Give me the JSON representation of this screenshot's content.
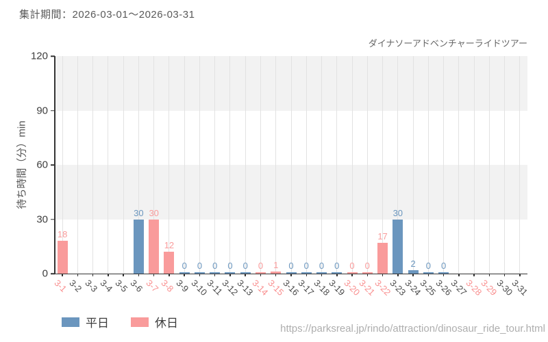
{
  "header": {
    "period_label": "集計期間：2026-03-01～2026-03-31"
  },
  "footer": {
    "url": "https://parksreal.jp/rindo/attraction/dinosaur_ride_tour.html"
  },
  "colors": {
    "weekday": "#6b96be",
    "holiday": "#f99b9b",
    "axis": "#333333",
    "tick_label_dark": "#4a4a4a",
    "tick_label_holiday": "#f98f8f",
    "band_gray": "#f2f2f2",
    "gridline": "#e2e2e2",
    "url_gray": "#aeaeae"
  },
  "chart_data": {
    "type": "bar",
    "title": "ダイナソーアドベンチャーライドツアー",
    "xlabel": "",
    "ylabel": "待ち時間（分）min",
    "ylim": [
      0,
      120
    ],
    "yticks": [
      0,
      30,
      60,
      90,
      120
    ],
    "grid": "alternating horizontal gray bands (30-unit) + vertical category gridlines",
    "legend_position": "bottom-left",
    "legend": [
      {
        "name": "平日",
        "color": "#6b96be"
      },
      {
        "name": "休日",
        "color": "#f99b9b"
      }
    ],
    "days": [
      {
        "label": "3-1",
        "day_type": "holiday",
        "value": 18
      },
      {
        "label": "3-2",
        "day_type": "weekday",
        "value": null
      },
      {
        "label": "3-3",
        "day_type": "weekday",
        "value": null
      },
      {
        "label": "3-4",
        "day_type": "weekday",
        "value": null
      },
      {
        "label": "3-5",
        "day_type": "weekday",
        "value": null
      },
      {
        "label": "3-6",
        "day_type": "weekday",
        "value": 30
      },
      {
        "label": "3-7",
        "day_type": "holiday",
        "value": 30
      },
      {
        "label": "3-8",
        "day_type": "holiday",
        "value": 12
      },
      {
        "label": "3-9",
        "day_type": "weekday",
        "value": 0
      },
      {
        "label": "3-10",
        "day_type": "weekday",
        "value": 0
      },
      {
        "label": "3-11",
        "day_type": "weekday",
        "value": 0
      },
      {
        "label": "3-12",
        "day_type": "weekday",
        "value": 0
      },
      {
        "label": "3-13",
        "day_type": "weekday",
        "value": 0
      },
      {
        "label": "3-14",
        "day_type": "holiday",
        "value": 0
      },
      {
        "label": "3-15",
        "day_type": "holiday",
        "value": 1
      },
      {
        "label": "3-16",
        "day_type": "weekday",
        "value": 0
      },
      {
        "label": "3-17",
        "day_type": "weekday",
        "value": 0
      },
      {
        "label": "3-18",
        "day_type": "weekday",
        "value": 0
      },
      {
        "label": "3-19",
        "day_type": "weekday",
        "value": 0
      },
      {
        "label": "3-20",
        "day_type": "holiday",
        "value": 0
      },
      {
        "label": "3-21",
        "day_type": "holiday",
        "value": 0
      },
      {
        "label": "3-22",
        "day_type": "holiday",
        "value": 17
      },
      {
        "label": "3-23",
        "day_type": "weekday",
        "value": 30
      },
      {
        "label": "3-24",
        "day_type": "weekday",
        "value": 2
      },
      {
        "label": "3-25",
        "day_type": "weekday",
        "value": 0
      },
      {
        "label": "3-26",
        "day_type": "weekday",
        "value": 0
      },
      {
        "label": "3-27",
        "day_type": "weekday",
        "value": null
      },
      {
        "label": "3-28",
        "day_type": "holiday",
        "value": null
      },
      {
        "label": "3-29",
        "day_type": "holiday",
        "value": null
      },
      {
        "label": "3-30",
        "day_type": "weekday",
        "value": null
      },
      {
        "label": "3-31",
        "day_type": "weekday",
        "value": null
      }
    ]
  }
}
